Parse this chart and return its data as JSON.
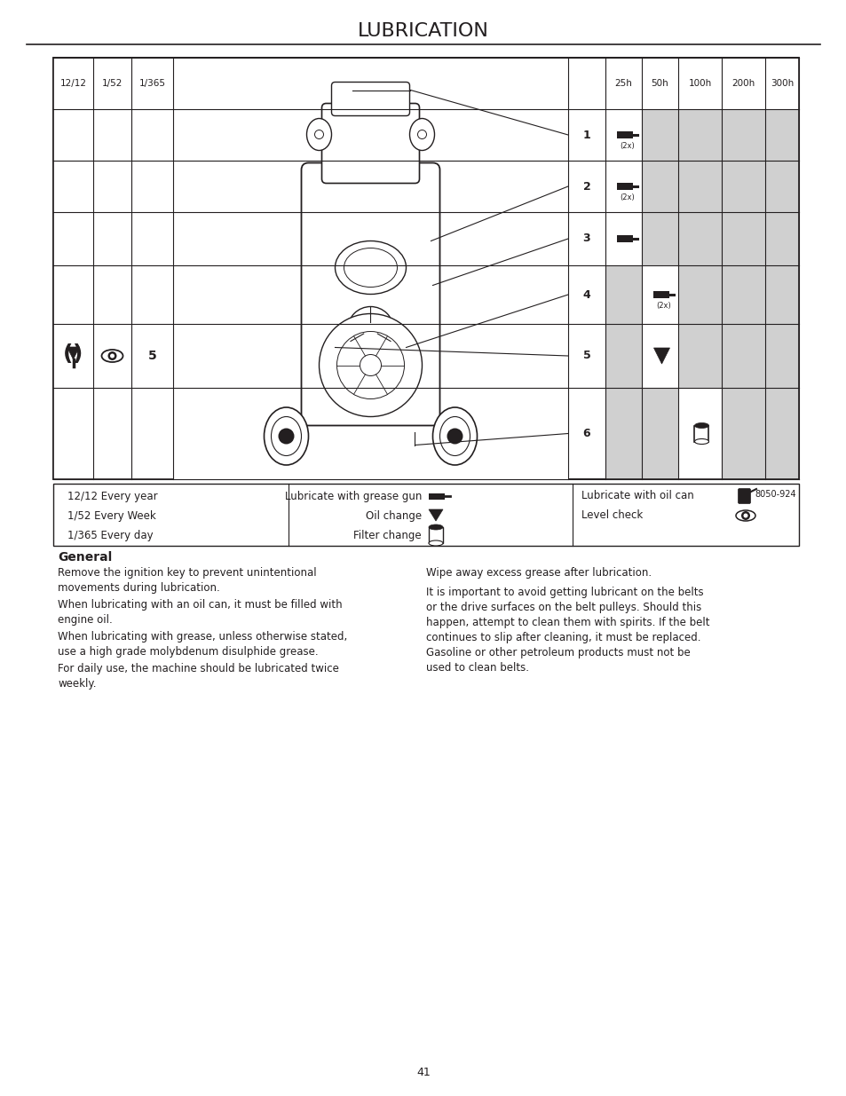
{
  "title": "LUBRICATION",
  "page_number": "41",
  "ref_code": "8050-924",
  "bg_color": "#ffffff",
  "text_color": "#231f20",
  "header_cols_left": [
    "12/12",
    "1/52",
    "1/365"
  ],
  "header_cols_right": [
    "25h",
    "50h",
    "100h",
    "200h",
    "300h"
  ],
  "row_labels": [
    "1",
    "2",
    "3",
    "4",
    "5",
    "6"
  ],
  "row_subs": [
    "(2x)",
    "(2x)",
    "",
    "(2x)",
    "",
    ""
  ],
  "row_icons": [
    "grease",
    "grease",
    "grease",
    "grease",
    "oil_change",
    "filter"
  ],
  "row_active_col": [
    0,
    0,
    0,
    1,
    1,
    2
  ],
  "legend_left": [
    "12/12 Every year",
    "1/52 Every Week",
    "1/365 Every day"
  ],
  "legend_mid_labels": [
    "Lubricate with grease gun",
    "Oil change",
    "Filter change"
  ],
  "legend_right_labels": [
    "Lubricate with oil can",
    "Level check"
  ],
  "general_title": "General",
  "general_text_left": [
    "Remove the ignition key to prevent unintentional\nmovements during lubrication.",
    "When lubricating with an oil can, it must be filled with\nengine oil.",
    "When lubricating with grease, unless otherwise stated,\nuse a high grade molybdenum disulphide grease.",
    "For daily use, the machine should be lubricated twice\nweekly."
  ],
  "general_text_right": [
    "Wipe away excess grease after lubrication.",
    "It is important to avoid getting lubricant on the belts\nor the drive surfaces on the belt pulleys. Should this\nhappen, attempt to clean them with spirits. If the belt\ncontinues to slip after cleaning, it must be replaced.\nGasoline or other petroleum products must not be\nused to clean belts."
  ]
}
